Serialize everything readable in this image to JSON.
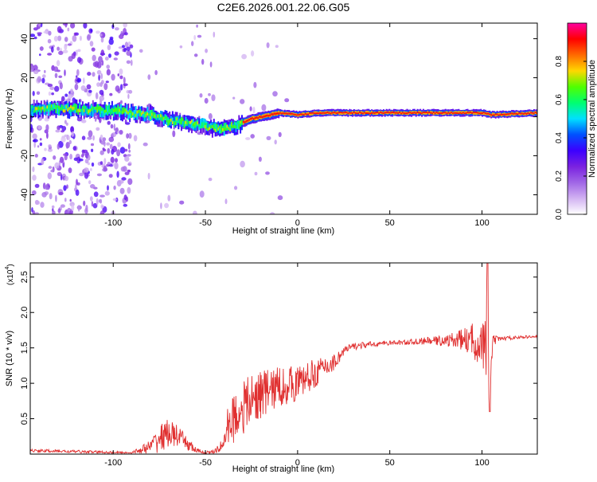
{
  "figure": {
    "title": "C2E6.2026.001.22.06.G05"
  },
  "chart_data": [
    {
      "type": "heatmap",
      "xlabel": "Height of straight line (km)",
      "ylabel": "Frequency (Hz)",
      "xlim": [
        -145,
        130
      ],
      "ylim": [
        -50,
        48
      ],
      "xticks": [
        -100,
        -50,
        0,
        50,
        100
      ],
      "yticks": [
        -40,
        -20,
        0,
        20,
        40
      ],
      "colorbar": {
        "label": "Normalized spectral amplitude",
        "range": [
          0,
          1
        ],
        "ticks": [
          "0.0",
          "0.2",
          "0.4",
          "0.6",
          "0.8"
        ],
        "colors": [
          "#ffffff",
          "#d2b2f2",
          "#a066e6",
          "#7a22e0",
          "#3c00ff",
          "#0050ff",
          "#00e0ff",
          "#00ff70",
          "#50ff00",
          "#ffd700",
          "#ff6a00",
          "#ff0000",
          "#ff00a0"
        ]
      },
      "ridge": {
        "x": [
          -145,
          -120,
          -100,
          -80,
          -70,
          -60,
          -50,
          -45,
          -40,
          -35,
          -30,
          -25,
          -20,
          -15,
          -10,
          0,
          10,
          20,
          30,
          50,
          80,
          95,
          100,
          105,
          130
        ],
        "y": [
          4,
          4,
          3,
          1,
          -2,
          -3,
          -5,
          -6,
          -6,
          -5,
          -3,
          -1,
          0,
          1,
          2,
          1,
          2,
          2,
          2,
          2,
          2,
          2,
          2,
          1,
          2
        ]
      },
      "ridge_intensity": 0.9,
      "grid": false
    },
    {
      "type": "line",
      "xlabel": "Height of straight line (km)",
      "ylabel": "SNR (10 * v/v)",
      "y_multiplier": "(x10",
      "y_multiplier_exp": "4",
      "xlim": [
        -145,
        130
      ],
      "ylim": [
        0,
        2.7
      ],
      "xticks": [
        -100,
        -50,
        0,
        50,
        100
      ],
      "yticks": [
        0.5,
        1.0,
        1.5,
        2.0,
        2.5
      ],
      "color": "#e03030",
      "envelope": {
        "x": [
          -145,
          -110,
          -90,
          -80,
          -75,
          -70,
          -65,
          -60,
          -55,
          -50,
          -45,
          -40,
          -38,
          -35,
          -30,
          -20,
          -10,
          0,
          10,
          20,
          25,
          30,
          40,
          50,
          60,
          70,
          80,
          90,
          95,
          100,
          102,
          103,
          104,
          106,
          110,
          120,
          130
        ],
        "base": [
          0.05,
          0.03,
          0.02,
          0.1,
          0.22,
          0.3,
          0.25,
          0.15,
          0.05,
          0.02,
          0.03,
          0.15,
          0.4,
          0.5,
          0.65,
          0.85,
          0.95,
          1.0,
          1.15,
          1.3,
          1.45,
          1.52,
          1.55,
          1.57,
          1.58,
          1.6,
          1.6,
          1.62,
          1.6,
          1.55,
          1.5,
          1.6,
          0.9,
          1.6,
          1.63,
          1.65,
          1.66
        ],
        "spread": [
          0.02,
          0.02,
          0.01,
          0.1,
          0.2,
          0.2,
          0.15,
          0.1,
          0.04,
          0.02,
          0.03,
          0.1,
          0.25,
          0.35,
          0.4,
          0.35,
          0.3,
          0.25,
          0.2,
          0.12,
          0.08,
          0.05,
          0.04,
          0.03,
          0.04,
          0.05,
          0.08,
          0.15,
          0.25,
          0.3,
          0.5,
          0.9,
          0.3,
          0.08,
          0.03,
          0.02,
          0.02
        ]
      },
      "grid": false
    }
  ]
}
